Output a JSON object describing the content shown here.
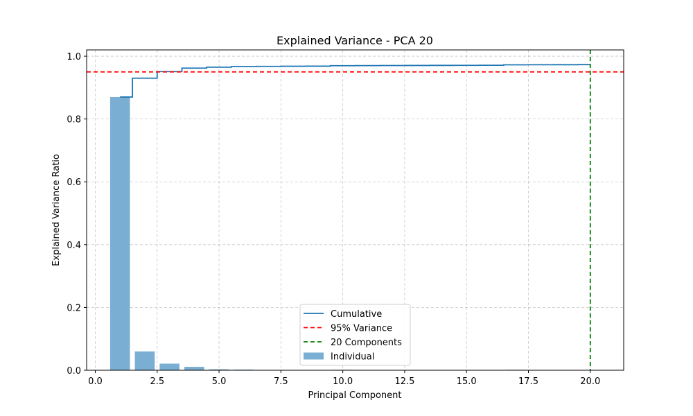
{
  "chart_data": {
    "type": "bar",
    "title": "Explained Variance - PCA 20",
    "xlabel": "Principal Component",
    "ylabel": "Explained Variance Ratio",
    "xlim": [
      -0.35,
      21.35
    ],
    "ylim": [
      0,
      1.02
    ],
    "xticks": [
      0.0,
      2.5,
      5.0,
      7.5,
      10.0,
      12.5,
      15.0,
      17.5,
      20.0
    ],
    "xtick_labels": [
      "0.0",
      "2.5",
      "5.0",
      "7.5",
      "10.0",
      "12.5",
      "15.0",
      "17.5",
      "20.0"
    ],
    "yticks": [
      0.0,
      0.2,
      0.4,
      0.6,
      0.8,
      1.0
    ],
    "ytick_labels": [
      "0.0",
      "0.2",
      "0.4",
      "0.6",
      "0.8",
      "1.0"
    ],
    "grid": true,
    "legend_position": "bottom-center",
    "individual": {
      "name": "Individual",
      "color": "#7aafd3",
      "x": [
        1,
        2,
        3,
        4,
        5,
        6,
        7,
        8,
        9,
        10,
        11,
        12,
        13,
        14,
        15,
        16,
        17,
        18,
        19,
        20
      ],
      "values": [
        0.87,
        0.06,
        0.021,
        0.011,
        0.003,
        0.002,
        0.0005,
        0.0005,
        0.0003,
        0.0015,
        0.0003,
        0.0002,
        0.0002,
        0.0002,
        0.0002,
        0.0002,
        0.0015,
        0.0002,
        0.0002,
        0.0002
      ]
    },
    "cumulative": {
      "name": "Cumulative",
      "color": "#1f77b4",
      "x": [
        1,
        2,
        3,
        4,
        5,
        6,
        7,
        8,
        9,
        10,
        11,
        12,
        13,
        14,
        15,
        16,
        17,
        18,
        19,
        20
      ],
      "values": [
        0.87,
        0.93,
        0.951,
        0.962,
        0.965,
        0.967,
        0.9675,
        0.968,
        0.9683,
        0.9698,
        0.9701,
        0.9703,
        0.9705,
        0.9707,
        0.9709,
        0.9711,
        0.9726,
        0.9728,
        0.973,
        0.9732
      ]
    },
    "threshold": {
      "name": "95% Variance",
      "y": 0.95,
      "color": "#ff0000"
    },
    "components_line": {
      "name": "20 Components",
      "x": 20,
      "color": "#008000"
    }
  }
}
